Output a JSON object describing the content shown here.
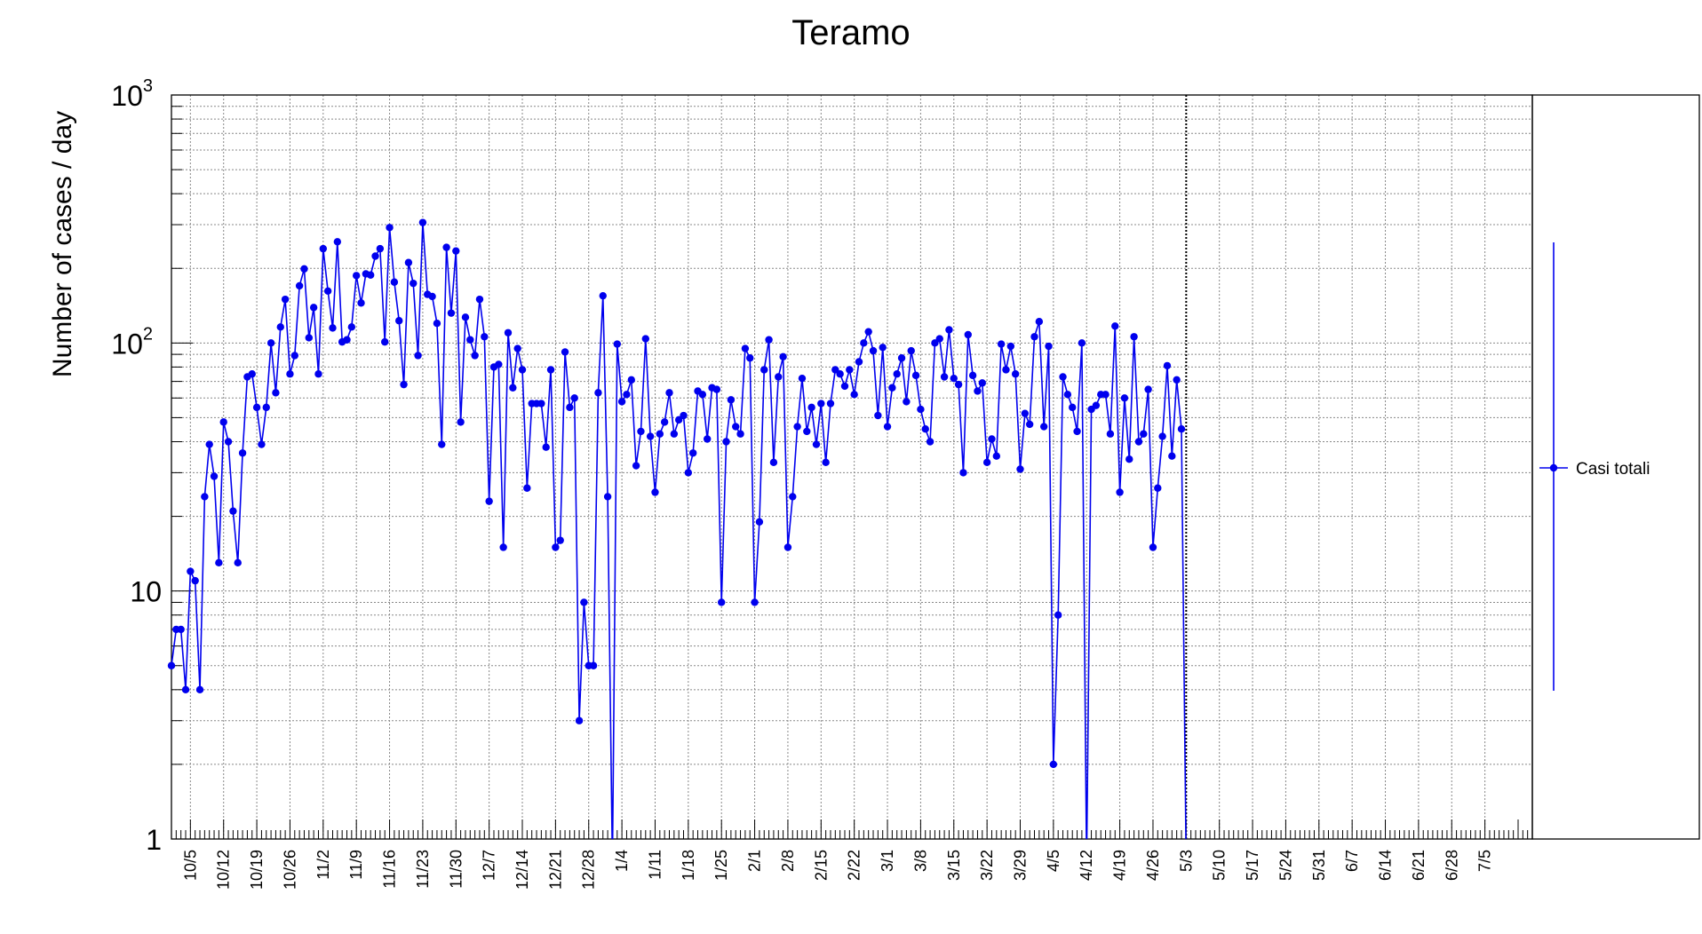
{
  "chart_data": {
    "type": "line",
    "title": "Teramo",
    "xlabel": "",
    "ylabel": "Number of cases / day",
    "yscale": "log",
    "ylim": [
      1,
      1000
    ],
    "yticks": [
      {
        "value": 1,
        "base": "1",
        "exp": ""
      },
      {
        "value": 10,
        "base": "10",
        "exp": ""
      },
      {
        "value": 100,
        "base": "10",
        "exp": "2"
      },
      {
        "value": 1000,
        "base": "10",
        "exp": "3"
      }
    ],
    "x_start": "2020-10-01",
    "x_end": "2021-07-15",
    "x_tick_labels": [
      "10/5",
      "10/12",
      "10/19",
      "10/26",
      "11/2",
      "11/9",
      "11/16",
      "11/23",
      "11/30",
      "12/7",
      "12/14",
      "12/21",
      "12/28",
      "1/4",
      "1/11",
      "1/18",
      "1/25",
      "2/1",
      "2/8",
      "2/15",
      "2/22",
      "3/1",
      "3/8",
      "3/15",
      "3/22",
      "3/29",
      "4/5",
      "4/12",
      "4/19",
      "4/26",
      "5/3",
      "5/10",
      "5/17",
      "5/24",
      "5/31",
      "6/7",
      "6/14",
      "6/21",
      "6/28",
      "7/5"
    ],
    "grid": true,
    "vertical_marker_date": "2021-05-03",
    "legend": {
      "position": "right",
      "entries": [
        "Casi totali"
      ]
    },
    "colors": {
      "series": "#0000ee",
      "frame": "#000000"
    },
    "series": [
      {
        "name": "Casi totali",
        "values": [
          5,
          7,
          7,
          4,
          12,
          11,
          4,
          24,
          39,
          29,
          13,
          48,
          40,
          21,
          13,
          36,
          73,
          75,
          55,
          39,
          55,
          100,
          63,
          116,
          150,
          75,
          89,
          170,
          199,
          105,
          139,
          75,
          240,
          162,
          115,
          256,
          101,
          103,
          116,
          187,
          145,
          190,
          188,
          224,
          240,
          101,
          292,
          176,
          123,
          68,
          211,
          174,
          89,
          306,
          157,
          154,
          120,
          39,
          243,
          132,
          235,
          48,
          127,
          103,
          89,
          150,
          106,
          23,
          80,
          82,
          15,
          110,
          66,
          95,
          78,
          26,
          57,
          57,
          57,
          38,
          78,
          15,
          16,
          92,
          55,
          60,
          3,
          9,
          5,
          5,
          63,
          155,
          24,
          0,
          99,
          58,
          62,
          71,
          32,
          44,
          104,
          42,
          25,
          43,
          48,
          63,
          43,
          49,
          51,
          30,
          36,
          64,
          62,
          41,
          66,
          65,
          9,
          40,
          59,
          46,
          43,
          95,
          87,
          9,
          19,
          78,
          103,
          33,
          73,
          88,
          15,
          24,
          46,
          72,
          44,
          55,
          39,
          57,
          33,
          57,
          78,
          75,
          67,
          78,
          62,
          84,
          100,
          111,
          93,
          51,
          96,
          46,
          66,
          75,
          87,
          58,
          93,
          74,
          54,
          45,
          40,
          100,
          104,
          73,
          113,
          72,
          68,
          30,
          108,
          74,
          64,
          69,
          33,
          41,
          35,
          99,
          78,
          97,
          75,
          31,
          52,
          47,
          106,
          122,
          46,
          97,
          2,
          8,
          73,
          62,
          55,
          44,
          100,
          0,
          54,
          56,
          62,
          62,
          43,
          117,
          25,
          60,
          34,
          106,
          40,
          43,
          65,
          15,
          26,
          42,
          81,
          35,
          71,
          45,
          0
        ]
      }
    ]
  }
}
